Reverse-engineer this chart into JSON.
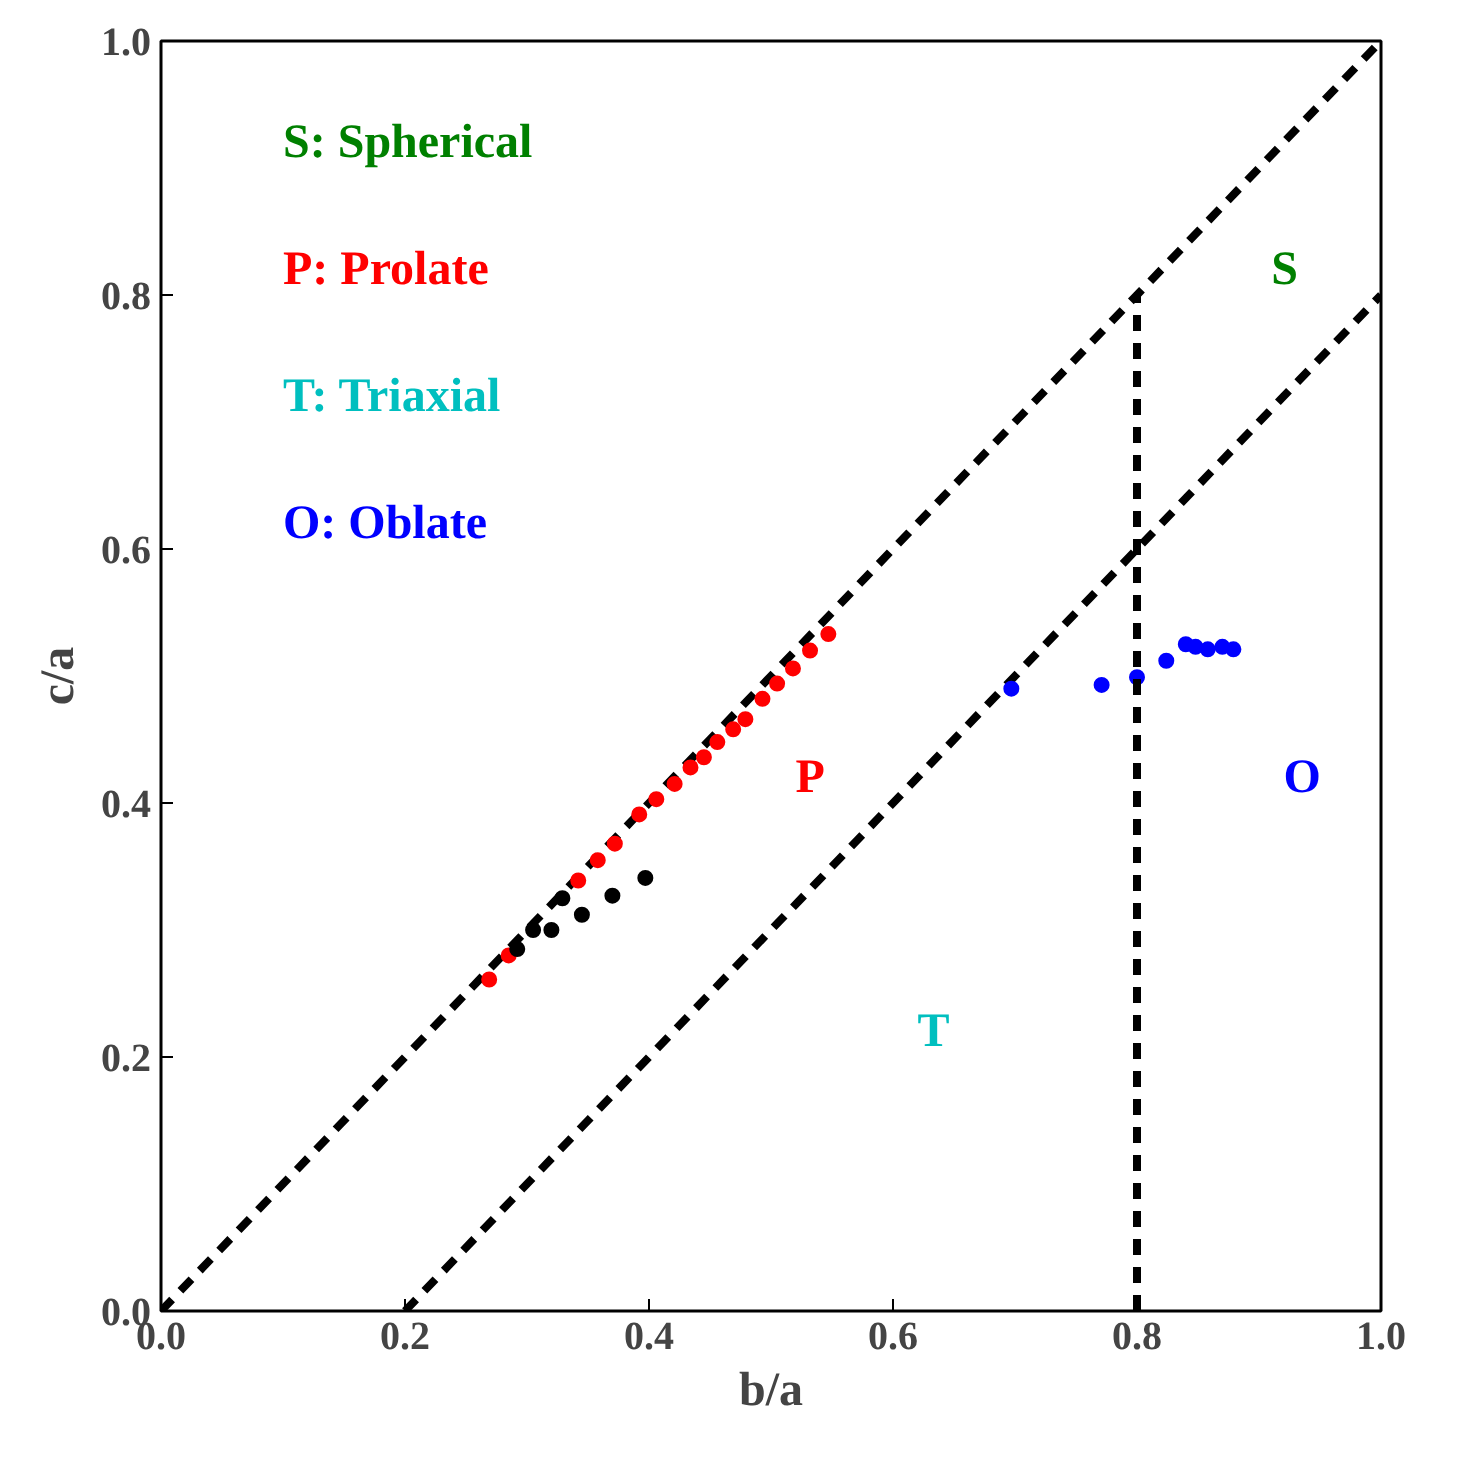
{
  "chart_data": {
    "type": "scatter",
    "xlabel": "b/a",
    "ylabel": "c/a",
    "xlim": [
      0.0,
      1.0
    ],
    "ylim": [
      0.0,
      1.0
    ],
    "xticks": [
      {
        "value": 0,
        "label": "0.0"
      },
      0.2,
      0.4,
      0.6,
      0.8,
      {
        "value": 1,
        "label": "1.0"
      }
    ],
    "yticks": [
      {
        "value": 0,
        "label": "0.0"
      },
      0.2,
      0.4,
      0.6,
      0.8,
      {
        "value": 1,
        "label": "1.0"
      }
    ],
    "grid": false,
    "ref_lines": [
      {
        "axis": "x",
        "value": 0.8,
        "color": "#000000",
        "line_style": "dashed"
      }
    ],
    "series": [
      {
        "type": "line",
        "line_style": "dashed",
        "color": "#000000",
        "x": [
          0,
          1
        ],
        "values": [
          0,
          1
        ]
      },
      {
        "type": "line",
        "line_style": "dashed",
        "color": "#000000",
        "x": [
          0.2,
          1
        ],
        "values": [
          0,
          0.8
        ]
      },
      {
        "color": "#ff0000",
        "x": [
          0.269,
          0.285,
          0.342,
          0.358,
          0.372,
          0.392,
          0.406,
          0.421,
          0.434,
          0.445,
          0.456,
          0.469,
          0.479,
          0.493,
          0.505,
          0.518,
          0.532,
          0.547
        ],
        "values": [
          0.261,
          0.28,
          0.339,
          0.355,
          0.368,
          0.391,
          0.403,
          0.415,
          0.428,
          0.436,
          0.448,
          0.458,
          0.466,
          0.482,
          0.494,
          0.506,
          0.52,
          0.533
        ]
      },
      {
        "color": "#000000",
        "x": [
          0.292,
          0.305,
          0.329,
          0.32,
          0.345,
          0.37,
          0.397
        ],
        "values": [
          0.285,
          0.3,
          0.325,
          0.3,
          0.312,
          0.327,
          0.341
        ]
      },
      {
        "color": "#0000ff",
        "x": [
          0.697,
          0.771,
          0.8,
          0.824,
          0.84,
          0.848,
          0.858,
          0.87,
          0.879
        ],
        "values": [
          0.49,
          0.493,
          0.499,
          0.512,
          0.525,
          0.523,
          0.521,
          0.523,
          0.521
        ]
      }
    ],
    "annotations": [
      "S: Spherical",
      "P: Prolate",
      "T: Triaxial",
      "O: Oblate",
      "S",
      "P",
      "O",
      "T"
    ]
  }
}
